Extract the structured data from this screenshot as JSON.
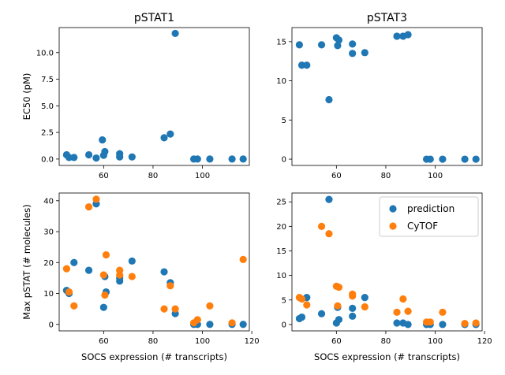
{
  "chart_data": [
    {
      "type": "scatter",
      "title": "pSTAT1",
      "xlabel": "",
      "ylabel": "EC50 (pM)",
      "xlim": [
        42,
        119
      ],
      "ylim": [
        -0.6,
        12.35
      ],
      "xticks": [
        60,
        80,
        100
      ],
      "xtick_labels": [
        "60",
        "80",
        "100"
      ],
      "yticks": [
        0,
        2.5,
        5,
        7.5,
        10
      ],
      "ytick_labels": [
        "0.0",
        "2.5",
        "5.0",
        "7.5",
        "10.0"
      ],
      "series": [
        {
          "name": "prediction",
          "color": "#1f77b4",
          "points": [
            [
              45,
              0.4
            ],
            [
              46,
              0.15
            ],
            [
              48,
              0.15
            ],
            [
              54,
              0.4
            ],
            [
              57,
              0.1
            ],
            [
              59.5,
              1.8
            ],
            [
              60,
              0.35
            ],
            [
              60.5,
              0.7
            ],
            [
              66.5,
              0.2
            ],
            [
              66.5,
              0.5
            ],
            [
              71.5,
              0.2
            ],
            [
              84.5,
              2.0
            ],
            [
              87,
              2.35
            ],
            [
              89,
              11.8
            ],
            [
              96.5,
              0.0
            ],
            [
              98,
              0.0
            ],
            [
              103,
              0.0
            ],
            [
              112,
              0.0
            ],
            [
              116.5,
              0.0
            ]
          ]
        }
      ]
    },
    {
      "type": "scatter",
      "title": "pSTAT3",
      "xlabel": "",
      "ylabel": "",
      "xlim": [
        42,
        119
      ],
      "ylim": [
        -0.8,
        16.8
      ],
      "xticks": [
        60,
        80,
        100
      ],
      "xtick_labels": [
        "60",
        "80",
        "100"
      ],
      "yticks": [
        0,
        5,
        10,
        15
      ],
      "ytick_labels": [
        "0",
        "5",
        "10",
        "15"
      ],
      "series": [
        {
          "name": "prediction",
          "color": "#1f77b4",
          "points": [
            [
              45,
              14.6
            ],
            [
              46,
              12.0
            ],
            [
              48,
              12.0
            ],
            [
              54,
              14.6
            ],
            [
              57,
              7.6
            ],
            [
              60,
              15.5
            ],
            [
              60.5,
              14.5
            ],
            [
              61,
              15.2
            ],
            [
              66.5,
              14.7
            ],
            [
              66.5,
              13.5
            ],
            [
              71.5,
              13.6
            ],
            [
              84.5,
              15.7
            ],
            [
              87,
              15.7
            ],
            [
              89,
              15.9
            ],
            [
              96.5,
              0.0
            ],
            [
              98,
              0.0
            ],
            [
              103,
              0.0
            ],
            [
              112,
              0.0
            ],
            [
              116.5,
              0.0
            ]
          ]
        }
      ]
    },
    {
      "type": "scatter",
      "title": "",
      "xlabel": "SOCS expression (# transcripts)",
      "ylabel": "Max pSTAT (# molecules)",
      "xlim": [
        42,
        119
      ],
      "ylim": [
        -2.1,
        42.5
      ],
      "xticks": [
        60,
        80,
        100,
        120
      ],
      "xtick_labels": [
        "60",
        "80",
        "100",
        "120"
      ],
      "yticks": [
        0,
        10,
        20,
        30,
        40
      ],
      "ytick_labels": [
        "0",
        "10",
        "20",
        "30",
        "40"
      ],
      "series": [
        {
          "name": "prediction",
          "color": "#1f77b4",
          "points": [
            [
              45,
              11.0
            ],
            [
              46,
              10.0
            ],
            [
              48,
              20.0
            ],
            [
              54,
              17.5
            ],
            [
              57,
              39.0
            ],
            [
              60,
              5.5
            ],
            [
              60.5,
              15.5
            ],
            [
              61,
              10.5
            ],
            [
              66.5,
              15.0
            ],
            [
              66.5,
              14.0
            ],
            [
              71.5,
              20.5
            ],
            [
              84.5,
              17.0
            ],
            [
              87,
              13.5
            ],
            [
              89,
              3.5
            ],
            [
              96.5,
              0.0
            ],
            [
              98,
              0.0
            ],
            [
              103,
              0.0
            ],
            [
              112,
              0.0
            ],
            [
              116.5,
              0.0
            ]
          ]
        },
        {
          "name": "CyTOF",
          "color": "#ff7f0e",
          "points": [
            [
              45,
              18.0
            ],
            [
              46,
              10.5
            ],
            [
              48,
              6.0
            ],
            [
              54,
              38.0
            ],
            [
              57,
              40.5
            ],
            [
              60,
              16.0
            ],
            [
              60.5,
              9.5
            ],
            [
              61,
              22.5
            ],
            [
              66.5,
              17.5
            ],
            [
              66.5,
              16.0
            ],
            [
              71.5,
              15.5
            ],
            [
              84.5,
              5.0
            ],
            [
              87,
              12.5
            ],
            [
              89,
              5.0
            ],
            [
              96.5,
              0.5
            ],
            [
              98,
              1.5
            ],
            [
              103,
              6.0
            ],
            [
              112,
              0.5
            ],
            [
              116.5,
              21.0
            ]
          ]
        }
      ]
    },
    {
      "type": "scatter",
      "title": "",
      "xlabel": "SOCS expression (# transcripts)",
      "ylabel": "",
      "xlim": [
        42,
        119
      ],
      "ylim": [
        -1.3,
        26.8
      ],
      "xticks": [
        60,
        80,
        100,
        120
      ],
      "xtick_labels": [
        "60",
        "80",
        "100",
        "120"
      ],
      "yticks": [
        0,
        5,
        10,
        15,
        20,
        25
      ],
      "ytick_labels": [
        "0",
        "5",
        "10",
        "15",
        "20",
        "25"
      ],
      "legend": "top-right",
      "series": [
        {
          "name": "prediction",
          "color": "#1f77b4",
          "points": [
            [
              45,
              1.2
            ],
            [
              46,
              1.5
            ],
            [
              48,
              5.5
            ],
            [
              54,
              2.2
            ],
            [
              57,
              25.5
            ],
            [
              60,
              0.3
            ],
            [
              60.5,
              3.5
            ],
            [
              61,
              1.0
            ],
            [
              66.5,
              3.3
            ],
            [
              66.5,
              1.7
            ],
            [
              71.5,
              5.5
            ],
            [
              84.5,
              0.3
            ],
            [
              87,
              0.3
            ],
            [
              89,
              0.0
            ],
            [
              96.5,
              0.0
            ],
            [
              98,
              0.0
            ],
            [
              103,
              0.0
            ],
            [
              112,
              0.0
            ],
            [
              116.5,
              0.0
            ]
          ]
        },
        {
          "name": "CyTOF",
          "color": "#ff7f0e",
          "points": [
            [
              45,
              5.5
            ],
            [
              46,
              5.2
            ],
            [
              48,
              4.0
            ],
            [
              54,
              20.0
            ],
            [
              57,
              18.5
            ],
            [
              60,
              7.8
            ],
            [
              60.5,
              3.8
            ],
            [
              61,
              7.6
            ],
            [
              66.5,
              6.2
            ],
            [
              66.5,
              5.8
            ],
            [
              71.5,
              3.6
            ],
            [
              84.5,
              2.5
            ],
            [
              87,
              5.2
            ],
            [
              89,
              2.7
            ],
            [
              96.5,
              0.5
            ],
            [
              98,
              0.5
            ],
            [
              103,
              2.5
            ],
            [
              112,
              0.2
            ],
            [
              116.5,
              0.3
            ]
          ]
        }
      ]
    }
  ]
}
